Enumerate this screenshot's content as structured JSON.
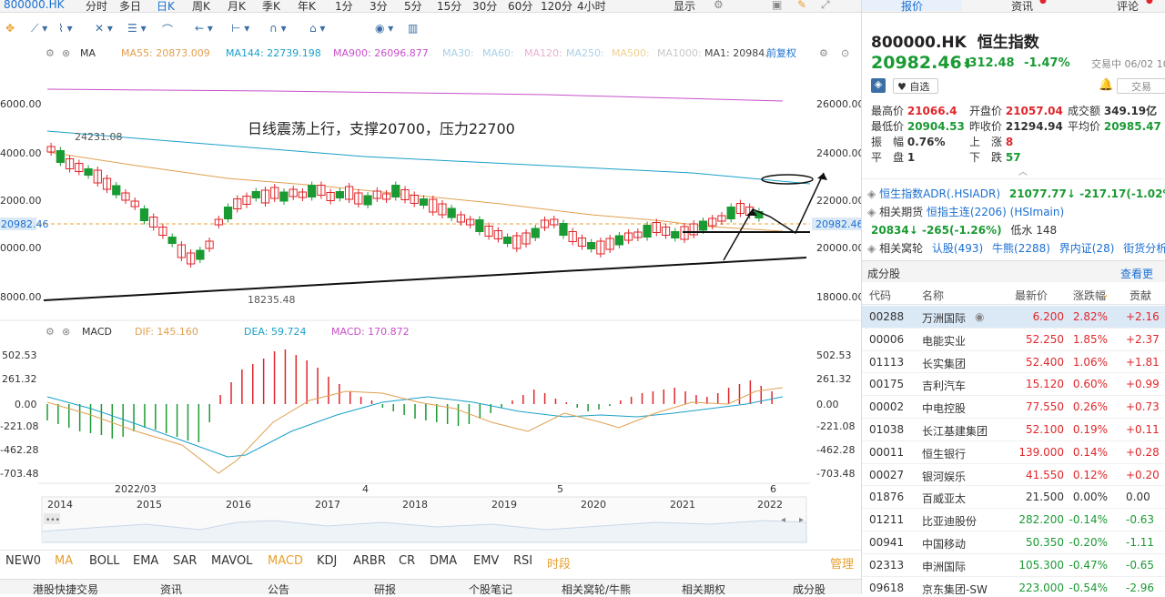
{
  "topbar": {
    "code": "800000.HK",
    "periods": [
      "分时",
      "多日",
      "日K",
      "周K",
      "月K",
      "季K",
      "年K",
      "1分",
      "3分",
      "5分",
      "15分",
      "30分",
      "60分",
      "120分",
      "4小时"
    ],
    "active_period": "日K",
    "display_label": "显示"
  },
  "ma_legend": {
    "type": "MA",
    "items": [
      {
        "label": "MA55: 20873.009",
        "color": "#e0a050"
      },
      {
        "label": "MA144: 22739.198",
        "color": "#1aa0c8"
      },
      {
        "label": "MA900: 26096.877",
        "color": "#c850c8"
      },
      {
        "label": "MA30:",
        "color": "#a8d0e8"
      },
      {
        "label": "MA60:",
        "color": "#a8d0e8"
      },
      {
        "label": "MA120:",
        "color": "#e8b0d0"
      },
      {
        "label": "MA250:",
        "color": "#a8d0e8"
      },
      {
        "label": "MA500:",
        "color": "#f0d090"
      },
      {
        "label": "MA1000:",
        "color": "#c8c8c8"
      },
      {
        "label": "MA1: 20984.",
        "color": "#444444"
      }
    ],
    "restore": "前复权"
  },
  "price_axis": {
    "left_ticks": [
      "6000.00",
      "4000.00",
      "2000.00",
      "0000.00",
      "8000.00"
    ],
    "right_ticks": [
      "26000.00",
      "24000.00",
      "22000.00",
      "20000.00",
      "18000.00"
    ],
    "current_left": "20982.46",
    "current_right": "20982.46"
  },
  "annotations": {
    "note": "日线震荡上行，支撑20700，压力22700",
    "high_label": "24231.08",
    "low_label": "18235.48"
  },
  "macd_legend": {
    "type": "MACD",
    "dif": "DIF: 145.160",
    "dea": "DEA: 59.724",
    "macd": "MACD: 170.872"
  },
  "macd_axis": {
    "left_ticks": [
      "502.53",
      "261.32",
      "0.00",
      "-221.08",
      "-462.28",
      "-703.48"
    ],
    "right_ticks": [
      "502.53",
      "261.32",
      "0.00",
      "-221.08",
      "-462.28",
      "-703.48"
    ]
  },
  "date_axis": [
    "2022/03",
    "4",
    "5",
    "6"
  ],
  "year_axis": [
    "2014",
    "2015",
    "2016",
    "2017",
    "2018",
    "2019",
    "2020",
    "2021",
    "2022"
  ],
  "indicators": {
    "items": [
      "NEW0",
      "MA",
      "BOLL",
      "EMA",
      "SAR",
      "MAVOL",
      "MACD",
      "KDJ",
      "ARBR",
      "CR",
      "DMA",
      "EMV",
      "RSI",
      "时段"
    ],
    "manage": "管理"
  },
  "footer": [
    "港股快捷交易",
    "资讯",
    "公告",
    "研报",
    "个股笔记",
    "相关窝轮/牛熊",
    "相关期权",
    "成分股"
  ],
  "right_panel": {
    "tabs": [
      "报价",
      "资讯",
      "评论"
    ],
    "code": "800000.HK",
    "name": "恒生指数",
    "price": "20982.46",
    "arrow": "⬇",
    "change": "-312.48",
    "change_pct": "-1.47%",
    "status": "交易中 06/02 10:",
    "watch": "自选",
    "trade": "交易",
    "stats": [
      {
        "label": "最高价",
        "value": "21066.4",
        "color": "red"
      },
      {
        "label": "开盘价",
        "value": "21057.04",
        "color": "red"
      },
      {
        "label": "成交额",
        "value": "349.19亿",
        "color": "black"
      },
      {
        "label": "最低价",
        "value": "20904.53",
        "color": "green"
      },
      {
        "label": "昨收价",
        "value": "21294.94",
        "color": "black"
      },
      {
        "label": "平均价",
        "value": "20985.47",
        "color": "green"
      },
      {
        "label": "振　幅",
        "value": "0.76%",
        "color": "black"
      },
      {
        "label": "上　涨",
        "value": "8",
        "color": "red"
      },
      {
        "label": "平　盘",
        "value": "1",
        "color": "black"
      },
      {
        "label": "下　跌",
        "value": "57",
        "color": "green"
      }
    ],
    "related": [
      {
        "label": "恒生指数ADR",
        "sub": "(.HSIADR)",
        "value": "21077.77↓ -217.17(-1.02%)"
      },
      {
        "label": "相关期货",
        "sub": "恒指主连(2206)",
        "extra": "(HSImain)"
      },
      {
        "value": "20834↓ -265(-1.26%)",
        "extra": "低水 148"
      }
    ],
    "warrants": {
      "label": "相关窝轮",
      "items": [
        "认股(493)",
        "牛熊(2288)",
        "界内证(28)",
        "街货分析"
      ]
    },
    "constituents_title": "成分股",
    "view_all": "查看更",
    "table_headers": [
      "代码",
      "名称",
      "最新价",
      "涨跌幅",
      "贡献"
    ],
    "rows": [
      {
        "code": "00288",
        "name": "万洲国际",
        "price": "6.200",
        "pct": "2.82%",
        "contrib": "+2.16",
        "dir": "up"
      },
      {
        "code": "00006",
        "name": "电能实业",
        "price": "52.250",
        "pct": "1.85%",
        "contrib": "+2.37",
        "dir": "up"
      },
      {
        "code": "01113",
        "name": "长实集团",
        "price": "52.400",
        "pct": "1.06%",
        "contrib": "+1.81",
        "dir": "up"
      },
      {
        "code": "00175",
        "name": "吉利汽车",
        "price": "15.120",
        "pct": "0.60%",
        "contrib": "+0.99",
        "dir": "up"
      },
      {
        "code": "00002",
        "name": "中电控股",
        "price": "77.550",
        "pct": "0.26%",
        "contrib": "+0.73",
        "dir": "up"
      },
      {
        "code": "01038",
        "name": "长江基建集团",
        "price": "52.100",
        "pct": "0.19%",
        "contrib": "+0.11",
        "dir": "up"
      },
      {
        "code": "00011",
        "name": "恒生银行",
        "price": "139.000",
        "pct": "0.14%",
        "contrib": "+0.28",
        "dir": "up"
      },
      {
        "code": "00027",
        "name": "银河娱乐",
        "price": "41.550",
        "pct": "0.12%",
        "contrib": "+0.20",
        "dir": "up"
      },
      {
        "code": "01876",
        "name": "百威亚太",
        "price": "21.500",
        "pct": "0.00%",
        "contrib": "0.00",
        "dir": "flat"
      },
      {
        "code": "01211",
        "name": "比亚迪股份",
        "price": "282.200",
        "pct": "-0.14%",
        "contrib": "-0.63",
        "dir": "down"
      },
      {
        "code": "00941",
        "name": "中国移动",
        "price": "50.350",
        "pct": "-0.20%",
        "contrib": "-1.11",
        "dir": "down"
      },
      {
        "code": "02313",
        "name": "申洲国际",
        "price": "105.300",
        "pct": "-0.47%",
        "contrib": "-0.65",
        "dir": "down"
      },
      {
        "code": "09618",
        "name": "京东集团-SW",
        "price": "223.000",
        "pct": "-0.54%",
        "contrib": "-2.96",
        "dir": "down"
      }
    ]
  }
}
